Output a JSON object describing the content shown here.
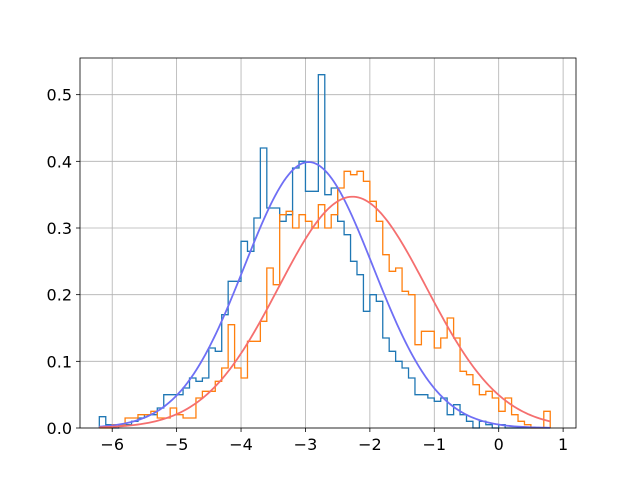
{
  "chart_data": {
    "type": "histogram",
    "title": "",
    "xlabel": "",
    "ylabel": "",
    "xlim": [
      -6.5,
      1.2
    ],
    "ylim": [
      0,
      0.555
    ],
    "grid": true,
    "legend": "none",
    "xticks": [
      -6,
      -5,
      -4,
      -3,
      -2,
      -1,
      0,
      1
    ],
    "xtick_labels": [
      "−6",
      "−5",
      "−4",
      "−3",
      "−2",
      "−1",
      "0",
      "1"
    ],
    "yticks": [
      0,
      0.1,
      0.2,
      0.3,
      0.4,
      0.5
    ],
    "ytick_labels": [
      "0.0",
      "0.1",
      "0.2",
      "0.3",
      "0.4",
      "0.5"
    ],
    "histograms": [
      {
        "color": "#1f77b4",
        "edges": [
          -6.2,
          -6.1,
          -6.0,
          -5.9,
          -5.8,
          -5.7,
          -5.6,
          -5.5,
          -5.4,
          -5.3,
          -5.2,
          -5.1,
          -5.0,
          -4.9,
          -4.8,
          -4.7,
          -4.6,
          -4.5,
          -4.4,
          -4.3,
          -4.2,
          -4.1,
          -4.0,
          -3.9,
          -3.8,
          -3.7,
          -3.6,
          -3.5,
          -3.4,
          -3.3,
          -3.2,
          -3.1,
          -3.0,
          -2.9,
          -2.8,
          -2.7,
          -2.6,
          -2.5,
          -2.4,
          -2.3,
          -2.2,
          -2.1,
          -2.0,
          -1.9,
          -1.8,
          -1.7,
          -1.6,
          -1.5,
          -1.4,
          -1.3,
          -1.2,
          -1.1,
          -1.0,
          -0.9,
          -0.8,
          -0.7,
          -0.6,
          -0.5,
          -0.4,
          -0.3,
          -0.2,
          -0.1,
          0.0,
          0.1,
          0.2,
          0.3,
          0.4,
          0.5,
          0.6,
          0.7,
          0.8
        ],
        "values": [
          0.017,
          0.005,
          0.0,
          0.005,
          0.005,
          0.01,
          0.015,
          0.02,
          0.02,
          0.03,
          0.05,
          0.05,
          0.05,
          0.06,
          0.075,
          0.07,
          0.075,
          0.12,
          0.115,
          0.17,
          0.22,
          0.22,
          0.28,
          0.265,
          0.315,
          0.42,
          0.33,
          0.33,
          0.31,
          0.32,
          0.39,
          0.4,
          0.355,
          0.355,
          0.53,
          0.35,
          0.36,
          0.31,
          0.29,
          0.25,
          0.23,
          0.175,
          0.2,
          0.19,
          0.135,
          0.115,
          0.1,
          0.09,
          0.075,
          0.05,
          0.05,
          0.045,
          0.04,
          0.045,
          0.02,
          0.035,
          0.02,
          0.01,
          0.0,
          0.01,
          0.005,
          0.0,
          0.005,
          0.0,
          0.0,
          0.0,
          0.0,
          0.0,
          0.0,
          0.0
        ]
      },
      {
        "color": "#ff7f0e",
        "edges": [
          -6.2,
          -6.0,
          -5.8,
          -5.6,
          -5.5,
          -5.4,
          -5.3,
          -5.2,
          -5.1,
          -5.0,
          -4.9,
          -4.8,
          -4.7,
          -4.6,
          -4.5,
          -4.4,
          -4.3,
          -4.2,
          -4.1,
          -4.0,
          -3.9,
          -3.8,
          -3.7,
          -3.6,
          -3.5,
          -3.4,
          -3.3,
          -3.2,
          -3.1,
          -3.0,
          -2.9,
          -2.8,
          -2.7,
          -2.6,
          -2.5,
          -2.4,
          -2.3,
          -2.2,
          -2.1,
          -2.0,
          -1.9,
          -1.8,
          -1.7,
          -1.6,
          -1.5,
          -1.4,
          -1.3,
          -1.2,
          -1.1,
          -1.0,
          -0.9,
          -0.8,
          -0.7,
          -0.6,
          -0.5,
          -0.4,
          -0.3,
          -0.2,
          -0.1,
          0.0,
          0.1,
          0.2,
          0.3,
          0.4,
          0.5,
          0.6,
          0.7,
          0.8
        ],
        "values": [
          0.0,
          0.005,
          0.015,
          0.02,
          0.02,
          0.025,
          0.015,
          0.015,
          0.03,
          0.02,
          0.015,
          0.015,
          0.045,
          0.055,
          0.055,
          0.07,
          0.09,
          0.155,
          0.09,
          0.075,
          0.13,
          0.13,
          0.16,
          0.24,
          0.215,
          0.32,
          0.325,
          0.3,
          0.32,
          0.31,
          0.3,
          0.335,
          0.3,
          0.32,
          0.36,
          0.385,
          0.38,
          0.385,
          0.37,
          0.34,
          0.31,
          0.26,
          0.235,
          0.24,
          0.205,
          0.2,
          0.125,
          0.145,
          0.145,
          0.12,
          0.135,
          0.165,
          0.135,
          0.085,
          0.08,
          0.065,
          0.05,
          0.055,
          0.045,
          0.025,
          0.045,
          0.02,
          0.01,
          0.005,
          0.0,
          0.0,
          0.025
        ]
      }
    ],
    "curves": [
      {
        "color": "#6f6ff5",
        "type": "normal_pdf",
        "mean": -2.95,
        "sd": 1.0
      },
      {
        "color": "#f56f6f",
        "type": "normal_pdf",
        "mean": -2.27,
        "sd": 1.15
      }
    ],
    "curve_x_range": [
      -6.2,
      0.8
    ]
  }
}
